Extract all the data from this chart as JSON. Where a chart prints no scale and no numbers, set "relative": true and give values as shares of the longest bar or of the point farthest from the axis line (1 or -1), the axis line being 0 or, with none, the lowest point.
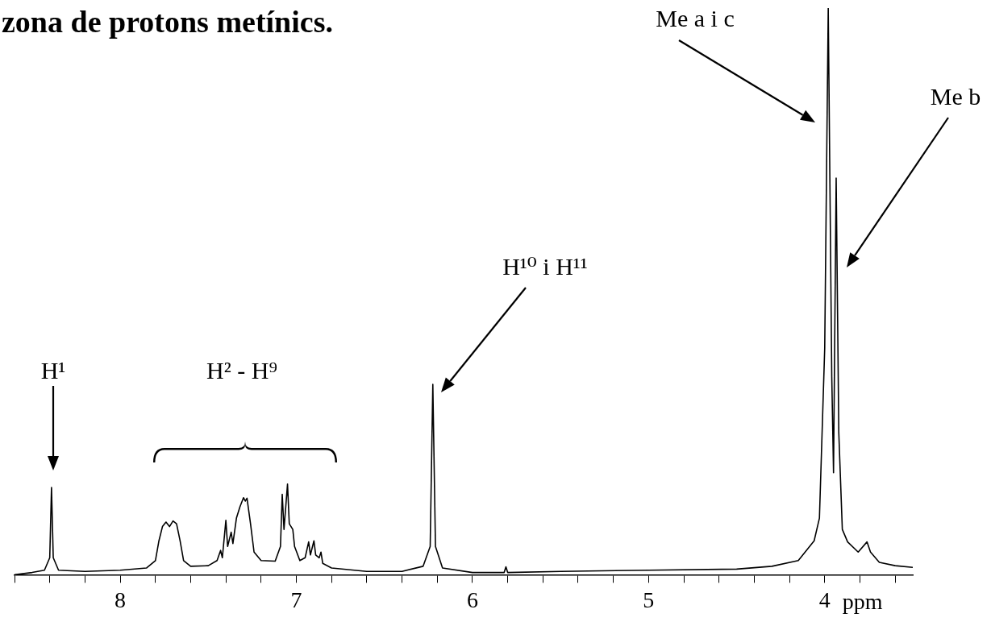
{
  "chart_data": {
    "type": "line",
    "title": "zona de protons metínics.",
    "xlabel": "ppm",
    "relative": true,
    "x": [
      8.6,
      8.5,
      8.43,
      8.4,
      8.39,
      8.38,
      8.35,
      8.2,
      8.0,
      7.85,
      7.8,
      7.78,
      7.76,
      7.74,
      7.72,
      7.7,
      7.68,
      7.66,
      7.64,
      7.6,
      7.5,
      7.45,
      7.43,
      7.42,
      7.4,
      7.39,
      7.37,
      7.36,
      7.34,
      7.32,
      7.3,
      7.29,
      7.28,
      7.26,
      7.24,
      7.2,
      7.12,
      7.09,
      7.08,
      7.07,
      7.05,
      7.04,
      7.02,
      7.01,
      6.98,
      6.95,
      6.93,
      6.92,
      6.9,
      6.89,
      6.87,
      6.86,
      6.85,
      6.8,
      6.6,
      6.4,
      6.28,
      6.24,
      6.225,
      6.21,
      6.17,
      6.0,
      5.82,
      5.81,
      5.8,
      5.5,
      5.0,
      4.5,
      4.3,
      4.15,
      4.06,
      4.03,
      4.0,
      3.98,
      3.96,
      3.95,
      3.935,
      3.92,
      3.9,
      3.87,
      3.81,
      3.76,
      3.74,
      3.69,
      3.6,
      3.5
    ],
    "series": [
      {
        "color": "#000000",
        "values": [
          0,
          0.004,
          0.008,
          0.03,
          0.154,
          0.03,
          0.008,
          0.006,
          0.008,
          0.012,
          0.025,
          0.06,
          0.085,
          0.093,
          0.085,
          0.095,
          0.09,
          0.06,
          0.025,
          0.015,
          0.016,
          0.025,
          0.043,
          0.03,
          0.096,
          0.05,
          0.075,
          0.055,
          0.1,
          0.12,
          0.136,
          0.13,
          0.135,
          0.09,
          0.04,
          0.025,
          0.024,
          0.05,
          0.142,
          0.08,
          0.16,
          0.09,
          0.08,
          0.05,
          0.025,
          0.03,
          0.058,
          0.035,
          0.06,
          0.035,
          0.03,
          0.04,
          0.02,
          0.012,
          0.006,
          0.006,
          0.015,
          0.05,
          0.336,
          0.05,
          0.012,
          0.004,
          0.004,
          0.014,
          0.004,
          0.006,
          0.008,
          0.01,
          0.015,
          0.025,
          0.06,
          0.1,
          0.4,
          1.0,
          0.35,
          0.18,
          0.7,
          0.25,
          0.08,
          0.058,
          0.04,
          0.058,
          0.04,
          0.022,
          0.016,
          0.013
        ]
      }
    ],
    "xlim": [
      8.6,
      3.5
    ],
    "xticks": [
      {
        "value": 8.6,
        "label": null
      },
      {
        "value": 8.4,
        "label": null
      },
      {
        "value": 8.2,
        "label": null
      },
      8,
      {
        "value": 7.8,
        "label": null
      },
      {
        "value": 7.6,
        "label": null
      },
      {
        "value": 7.4,
        "label": null
      },
      {
        "value": 7.2,
        "label": null
      },
      7,
      {
        "value": 6.8,
        "label": null
      },
      {
        "value": 6.6,
        "label": null
      },
      {
        "value": 6.4,
        "label": null
      },
      {
        "value": 6.2,
        "label": null
      },
      6,
      {
        "value": 5.8,
        "label": null
      },
      {
        "value": 5.6,
        "label": null
      },
      {
        "value": 5.4,
        "label": null
      },
      {
        "value": 5.2,
        "label": null
      },
      5,
      {
        "value": 4.8,
        "label": null
      },
      {
        "value": 4.6,
        "label": null
      },
      {
        "value": 4.4,
        "label": null
      },
      {
        "value": 4.2,
        "label": null
      },
      4,
      {
        "value": 3.8,
        "label": null
      },
      {
        "value": 3.6,
        "label": null
      }
    ],
    "annotations": [
      "H¹",
      "H² - H⁹",
      "H¹⁰ i H¹¹",
      "Me a i c",
      "Me b"
    ],
    "grid": false,
    "legend": false,
    "marker": "none",
    "line_style": "solid"
  }
}
